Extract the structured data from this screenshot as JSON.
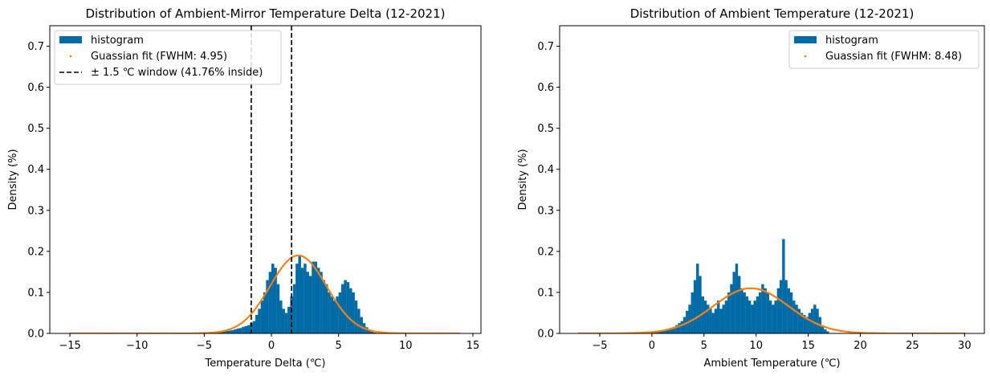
{
  "chart_data": [
    {
      "type": "bar",
      "title": "Distribution of Ambient-Mirror Temperature Delta (12-2021)",
      "xlabel": "Temperature Delta (℃)",
      "ylabel": "Density (%)",
      "xlim": [
        -16.5,
        15.6
      ],
      "ylim": [
        0,
        0.75
      ],
      "xticks": [
        -15,
        -10,
        -5,
        0,
        5,
        10,
        15
      ],
      "xtick_labels": [
        "−15",
        "−10",
        "−5",
        "0",
        "5",
        "10",
        "15"
      ],
      "yticks": [
        0.0,
        0.1,
        0.2,
        0.3,
        0.4,
        0.5,
        0.6,
        0.7
      ],
      "ytick_labels": [
        "0.0",
        "0.1",
        "0.2",
        "0.3",
        "0.4",
        "0.5",
        "0.6",
        "0.7"
      ],
      "legend_position": "top-left",
      "grid": false,
      "series": [
        {
          "name": "histogram",
          "kind": "histogram",
          "color": "#006BA4",
          "bin_width": 0.2,
          "bins": [
            [
              -5.0,
              0.001
            ],
            [
              -4.8,
              0.001
            ],
            [
              -4.6,
              0.002
            ],
            [
              -4.4,
              0.002
            ],
            [
              -4.2,
              0.003
            ],
            [
              -4.0,
              0.004
            ],
            [
              -3.8,
              0.004
            ],
            [
              -3.6,
              0.005
            ],
            [
              -3.4,
              0.006
            ],
            [
              -3.2,
              0.007
            ],
            [
              -3.0,
              0.008
            ],
            [
              -2.8,
              0.01
            ],
            [
              -2.6,
              0.012
            ],
            [
              -2.4,
              0.013
            ],
            [
              -2.2,
              0.016
            ],
            [
              -2.0,
              0.018
            ],
            [
              -1.8,
              0.02
            ],
            [
              -1.6,
              0.025
            ],
            [
              -1.4,
              0.03
            ],
            [
              -1.2,
              0.045
            ],
            [
              -1.0,
              0.06
            ],
            [
              -0.8,
              0.08
            ],
            [
              -0.6,
              0.1
            ],
            [
              -0.4,
              0.13
            ],
            [
              -0.2,
              0.15
            ],
            [
              0.0,
              0.17
            ],
            [
              0.2,
              0.16
            ],
            [
              0.4,
              0.12
            ],
            [
              0.6,
              0.08
            ],
            [
              0.8,
              0.06
            ],
            [
              1.0,
              0.05
            ],
            [
              1.2,
              0.065
            ],
            [
              1.4,
              0.09
            ],
            [
              1.6,
              0.12
            ],
            [
              1.8,
              0.17
            ],
            [
              2.0,
              0.19
            ],
            [
              2.2,
              0.16
            ],
            [
              2.4,
              0.17
            ],
            [
              2.6,
              0.15
            ],
            [
              2.8,
              0.14
            ],
            [
              3.0,
              0.175
            ],
            [
              3.2,
              0.175
            ],
            [
              3.4,
              0.16
            ],
            [
              3.6,
              0.15
            ],
            [
              3.8,
              0.13
            ],
            [
              4.0,
              0.12
            ],
            [
              4.2,
              0.1
            ],
            [
              4.4,
              0.09
            ],
            [
              4.6,
              0.08
            ],
            [
              4.8,
              0.09
            ],
            [
              5.0,
              0.1
            ],
            [
              5.2,
              0.12
            ],
            [
              5.4,
              0.13
            ],
            [
              5.6,
              0.125
            ],
            [
              5.8,
              0.11
            ],
            [
              6.0,
              0.1
            ],
            [
              6.2,
              0.08
            ],
            [
              6.4,
              0.06
            ],
            [
              6.6,
              0.04
            ],
            [
              6.8,
              0.025
            ],
            [
              7.0,
              0.015
            ],
            [
              7.2,
              0.008
            ],
            [
              7.4,
              0.004
            ],
            [
              7.6,
              0.002
            ]
          ]
        },
        {
          "name": "Guassian fit (FWHM: 4.95)",
          "kind": "gaussian",
          "color": "#FF800E",
          "x_range": [
            -15,
            14
          ],
          "mu": 2.0,
          "fwhm": 4.95,
          "peak": 0.19
        },
        {
          "name": "± 1.5 ℃ window (41.76% inside)",
          "kind": "vlines",
          "color": "#000000",
          "x": [
            -1.5,
            1.5
          ]
        }
      ]
    },
    {
      "type": "bar",
      "title": "Distribution of Ambient Temperature (12-2021)",
      "xlabel": "Ambient Temperature (℃)",
      "ylabel": "Density (%)",
      "xlim": [
        -8.85,
        31.9
      ],
      "ylim": [
        0,
        0.75
      ],
      "xticks": [
        -5,
        0,
        5,
        10,
        15,
        20,
        25,
        30
      ],
      "xtick_labels": [
        "−5",
        "0",
        "5",
        "10",
        "15",
        "20",
        "25",
        "30"
      ],
      "yticks": [
        0.0,
        0.1,
        0.2,
        0.3,
        0.4,
        0.5,
        0.6,
        0.7
      ],
      "ytick_labels": [
        "0.0",
        "0.1",
        "0.2",
        "0.3",
        "0.4",
        "0.5",
        "0.6",
        "0.7"
      ],
      "legend_position": "top-right",
      "grid": false,
      "series": [
        {
          "name": "histogram",
          "kind": "histogram",
          "color": "#006BA4",
          "bin_width": 0.25,
          "bins": [
            [
              -0.5,
              0.001
            ],
            [
              -0.25,
              0.002
            ],
            [
              0.0,
              0.003
            ],
            [
              0.25,
              0.004
            ],
            [
              0.5,
              0.005
            ],
            [
              0.75,
              0.006
            ],
            [
              1.0,
              0.008
            ],
            [
              1.25,
              0.01
            ],
            [
              1.5,
              0.012
            ],
            [
              1.75,
              0.014
            ],
            [
              2.0,
              0.016
            ],
            [
              2.25,
              0.02
            ],
            [
              2.5,
              0.025
            ],
            [
              2.75,
              0.03
            ],
            [
              3.0,
              0.04
            ],
            [
              3.25,
              0.055
            ],
            [
              3.5,
              0.07
            ],
            [
              3.75,
              0.1
            ],
            [
              4.0,
              0.13
            ],
            [
              4.25,
              0.17
            ],
            [
              4.5,
              0.14
            ],
            [
              4.75,
              0.09
            ],
            [
              5.0,
              0.08
            ],
            [
              5.25,
              0.07
            ],
            [
              5.5,
              0.06
            ],
            [
              5.75,
              0.05
            ],
            [
              6.0,
              0.06
            ],
            [
              6.25,
              0.08
            ],
            [
              6.5,
              0.06
            ],
            [
              6.75,
              0.07
            ],
            [
              7.0,
              0.08
            ],
            [
              7.25,
              0.1
            ],
            [
              7.5,
              0.12
            ],
            [
              7.75,
              0.15
            ],
            [
              8.0,
              0.17
            ],
            [
              8.25,
              0.14
            ],
            [
              8.5,
              0.11
            ],
            [
              8.75,
              0.1
            ],
            [
              9.0,
              0.09
            ],
            [
              9.25,
              0.08
            ],
            [
              9.5,
              0.07
            ],
            [
              9.75,
              0.08
            ],
            [
              10.0,
              0.09
            ],
            [
              10.25,
              0.1
            ],
            [
              10.5,
              0.12
            ],
            [
              10.75,
              0.11
            ],
            [
              11.0,
              0.1
            ],
            [
              11.25,
              0.08
            ],
            [
              11.5,
              0.07
            ],
            [
              11.75,
              0.08
            ],
            [
              12.0,
              0.11
            ],
            [
              12.25,
              0.13
            ],
            [
              12.5,
              0.23
            ],
            [
              12.75,
              0.13
            ],
            [
              13.0,
              0.11
            ],
            [
              13.25,
              0.1
            ],
            [
              13.5,
              0.08
            ],
            [
              13.75,
              0.07
            ],
            [
              14.0,
              0.06
            ],
            [
              14.25,
              0.05
            ],
            [
              14.5,
              0.045
            ],
            [
              14.75,
              0.04
            ],
            [
              15.0,
              0.05
            ],
            [
              15.25,
              0.06
            ],
            [
              15.5,
              0.07
            ],
            [
              15.75,
              0.06
            ],
            [
              16.0,
              0.04
            ],
            [
              16.25,
              0.02
            ],
            [
              16.5,
              0.01
            ],
            [
              16.75,
              0.005
            ]
          ]
        },
        {
          "name": "Guassian fit (FWHM: 8.48)",
          "kind": "gaussian",
          "color": "#FF800E",
          "x_range": [
            -7,
            30
          ],
          "mu": 9.5,
          "fwhm": 8.48,
          "peak": 0.11
        }
      ]
    }
  ]
}
